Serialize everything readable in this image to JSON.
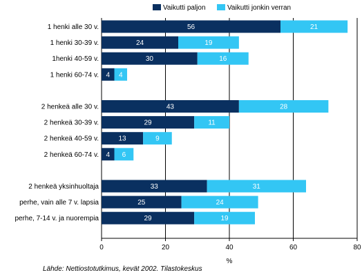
{
  "chart_data": {
    "type": "bar",
    "orientation": "horizontal",
    "stacked": true,
    "categories": [
      "1 henki alle 30 v.",
      "1 henki 30-39 v.",
      "1henki 40-59 v.",
      "1 henki 60-74 v.",
      "",
      "2 henkeä alle 30 v.",
      "2 henkeä 30-39 v.",
      "2 henkeä 40-59 v.",
      "2 henkeä 60-74 v.",
      "",
      "2 henkeä yksinhuoltaja",
      "perhe, vain alle 7 v. lapsia",
      "perhe, 7-14 v. ja nuorempia"
    ],
    "series": [
      {
        "name": "Vaikutti paljon",
        "color": "#0a3060",
        "values": [
          56,
          24,
          30,
          4,
          null,
          43,
          29,
          13,
          4,
          null,
          33,
          25,
          29
        ]
      },
      {
        "name": "Vaikutti jonkin verran",
        "color": "#33c6f4",
        "values": [
          21,
          19,
          16,
          4,
          null,
          28,
          11,
          9,
          6,
          null,
          31,
          24,
          19
        ]
      }
    ],
    "xlabel": "%",
    "xlim": [
      0,
      80
    ],
    "xticks": [
      "0",
      "20",
      "40",
      "60",
      "80"
    ],
    "grid": true,
    "legend_position": "top"
  },
  "source_note": "Lähde: Nettiostotutkimus, kevät 2002. Tilastokeskus"
}
